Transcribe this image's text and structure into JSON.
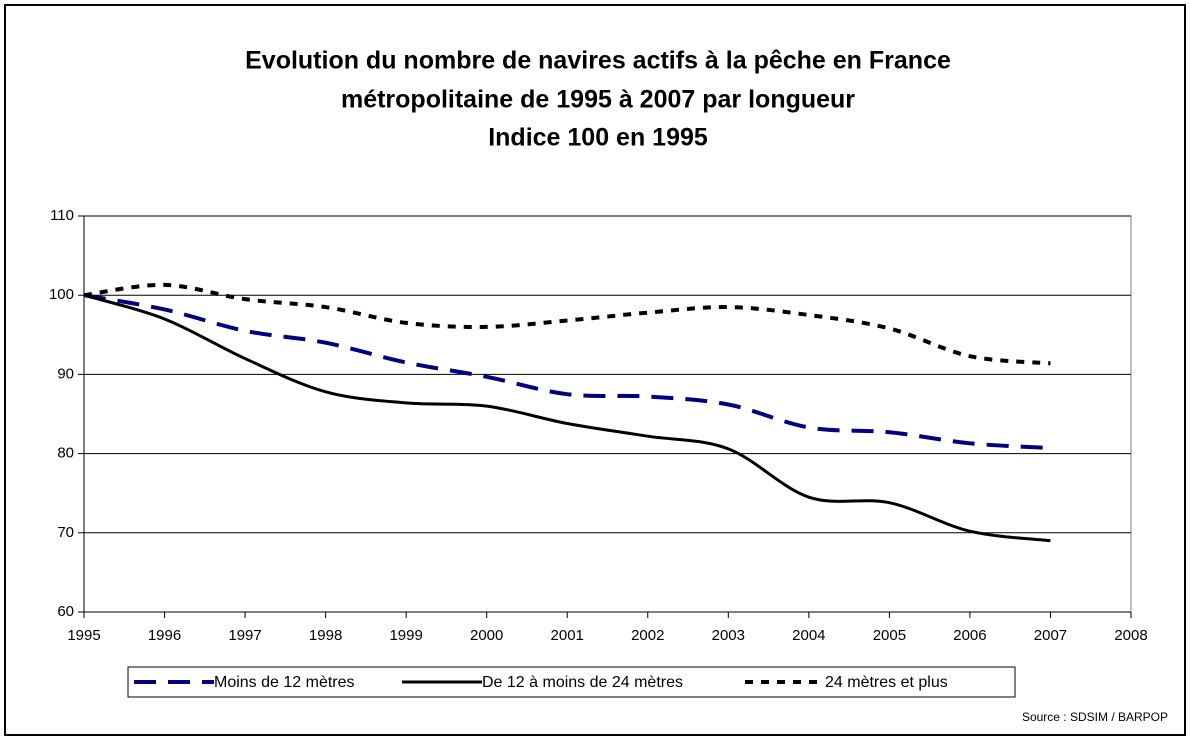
{
  "chart_data": {
    "type": "line",
    "title": [
      "Evolution du nombre de navires actifs à la pêche en France",
      "métropolitaine de 1995 à 2007 par longueur"
    ],
    "subtitle": "Indice 100 en 1995",
    "x": [
      1995,
      1996,
      1997,
      1998,
      1999,
      2000,
      2001,
      2002,
      2003,
      2004,
      2005,
      2006,
      2007
    ],
    "series": [
      {
        "name": "Moins de 12 mètres",
        "color": "#000080",
        "dash": "22 12",
        "width": 4,
        "values": [
          100,
          98.2,
          95.5,
          94,
          91.5,
          89.7,
          87.5,
          87.2,
          86.2,
          83.3,
          82.7,
          81.3,
          80.7
        ]
      },
      {
        "name": "De 12 à moins de 24 mètres",
        "color": "#000000",
        "dash": "none",
        "width": 3,
        "values": [
          100,
          97,
          92,
          87.8,
          86.4,
          86,
          83.8,
          82.2,
          80.6,
          74.5,
          73.8,
          70.2,
          69
        ]
      },
      {
        "name": "24 mètres et plus",
        "color": "#000000",
        "dash": "8 8",
        "width": 4,
        "values": [
          100,
          101.3,
          99.5,
          98.5,
          96.5,
          96,
          96.8,
          97.8,
          98.5,
          97.5,
          95.8,
          92.3,
          91.4
        ]
      }
    ],
    "xlim": [
      1995,
      2008
    ],
    "xticks": [
      1995,
      1996,
      1997,
      1998,
      1999,
      2000,
      2001,
      2002,
      2003,
      2004,
      2005,
      2006,
      2007,
      2008
    ],
    "ylim": [
      60,
      110
    ],
    "yticks": [
      60,
      70,
      80,
      90,
      100,
      110
    ],
    "grid": true,
    "legend": "bottom",
    "source": "Source : SDSIM / BARPOP"
  }
}
